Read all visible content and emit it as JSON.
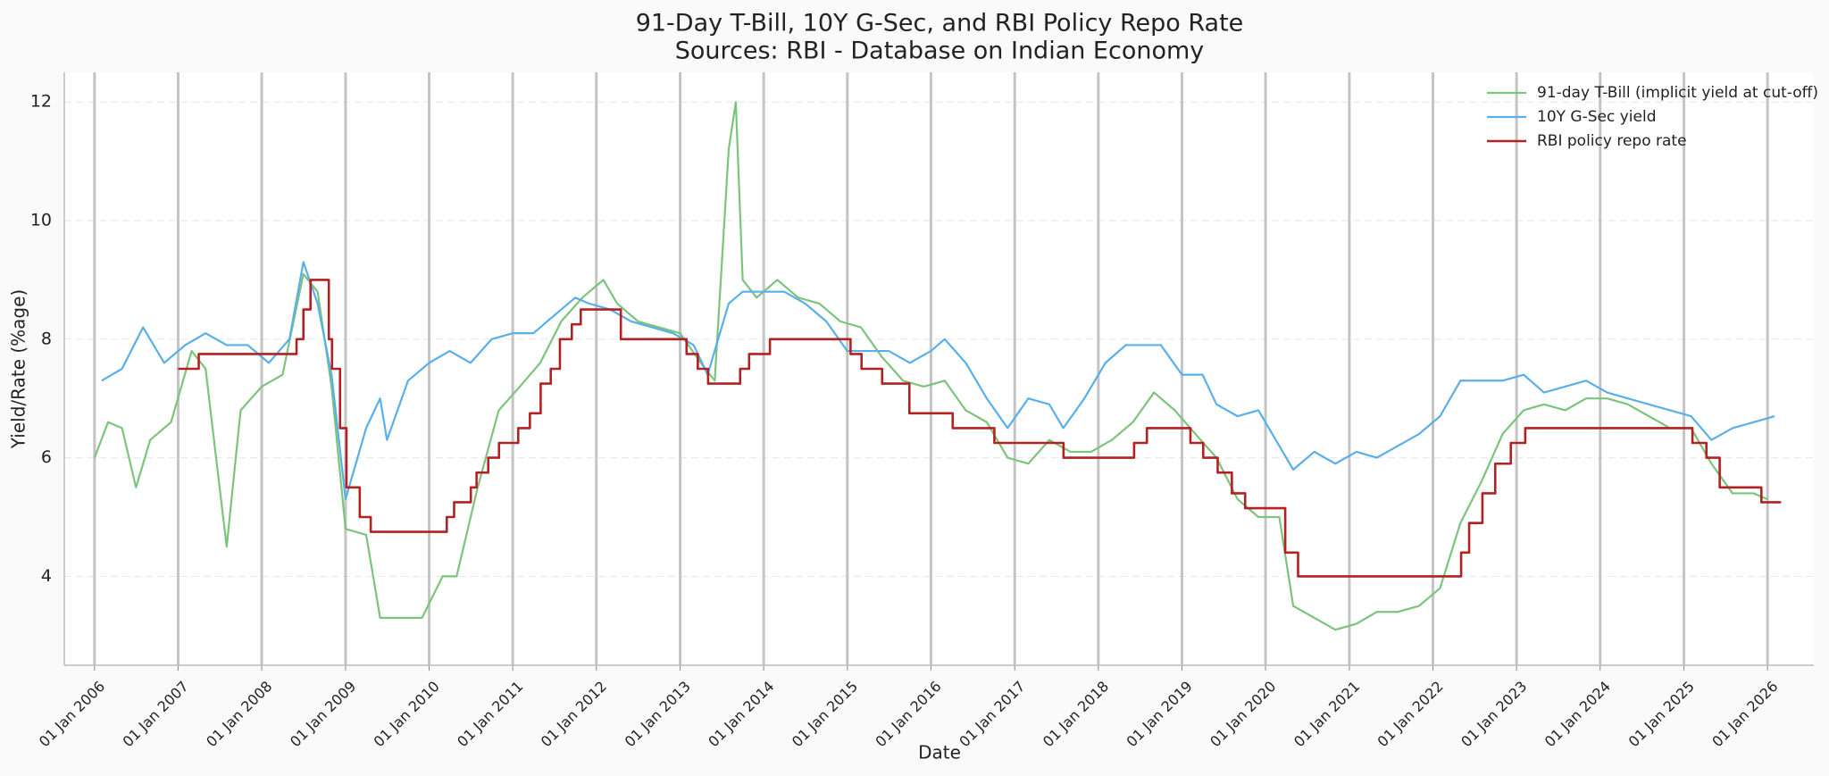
{
  "chart_data": {
    "type": "line",
    "title": "91-Day T-Bill, 10Y G-Sec, and RBI Policy Repo Rate",
    "subtitle": "Sources: RBI - Database on Indian Economy",
    "x_label": "Date",
    "y_label": "Yield/Rate (%age)",
    "xlim": [
      "2005-08-22",
      "2026-07-22"
    ],
    "ylim": [
      2.5,
      12.5
    ],
    "yticks": [
      4,
      6,
      8,
      10,
      12
    ],
    "xticks": [
      {
        "value": "2006-01-01",
        "label": "01 Jan 2006"
      },
      {
        "value": "2007-01-01",
        "label": "01 Jan 2007"
      },
      {
        "value": "2008-01-01",
        "label": "01 Jan 2008"
      },
      {
        "value": "2009-01-01",
        "label": "01 Jan 2009"
      },
      {
        "value": "2010-01-01",
        "label": "01 Jan 2010"
      },
      {
        "value": "2011-01-01",
        "label": "01 Jan 2011"
      },
      {
        "value": "2012-01-01",
        "label": "01 Jan 2012"
      },
      {
        "value": "2013-01-01",
        "label": "01 Jan 2013"
      },
      {
        "value": "2014-01-01",
        "label": "01 Jan 2014"
      },
      {
        "value": "2015-01-01",
        "label": "01 Jan 2015"
      },
      {
        "value": "2016-01-01",
        "label": "01 Jan 2016"
      },
      {
        "value": "2017-01-01",
        "label": "01 Jan 2017"
      },
      {
        "value": "2018-01-01",
        "label": "01 Jan 2018"
      },
      {
        "value": "2019-01-01",
        "label": "01 Jan 2019"
      },
      {
        "value": "2020-01-01",
        "label": "01 Jan 2020"
      },
      {
        "value": "2021-01-01",
        "label": "01 Jan 2021"
      },
      {
        "value": "2022-01-01",
        "label": "01 Jan 2022"
      },
      {
        "value": "2023-01-01",
        "label": "01 Jan 2023"
      },
      {
        "value": "2024-01-01",
        "label": "01 Jan 2024"
      },
      {
        "value": "2025-01-01",
        "label": "01 Jan 2025"
      },
      {
        "value": "2026-01-01",
        "label": "01 Jan 2026"
      }
    ],
    "grid": true,
    "legend": "upper right",
    "series": [
      {
        "name": "91-day T-Bill (implicit yield at cut-off)",
        "color": "#7cc47c",
        "x": [
          "2006-01-01",
          "2006-03-01",
          "2006-05-01",
          "2006-07-01",
          "2006-09-01",
          "2006-12-01",
          "2007-03-01",
          "2007-05-01",
          "2007-07-01",
          "2007-08-01",
          "2007-10-01",
          "2008-01-01",
          "2008-04-01",
          "2008-07-01",
          "2008-09-01",
          "2008-11-01",
          "2009-01-01",
          "2009-04-01",
          "2009-06-01",
          "2009-09-01",
          "2009-12-01",
          "2010-03-01",
          "2010-05-01",
          "2010-08-01",
          "2010-11-01",
          "2011-02-01",
          "2011-05-01",
          "2011-08-01",
          "2011-11-01",
          "2012-02-01",
          "2012-04-01",
          "2012-07-01",
          "2012-10-01",
          "2013-01-01",
          "2013-04-01",
          "2013-06-01",
          "2013-08-01",
          "2013-09-01",
          "2013-10-01",
          "2013-12-01",
          "2014-03-01",
          "2014-06-01",
          "2014-09-01",
          "2014-12-01",
          "2015-03-01",
          "2015-06-01",
          "2015-09-01",
          "2015-12-01",
          "2016-03-01",
          "2016-06-01",
          "2016-09-01",
          "2016-12-01",
          "2017-03-01",
          "2017-06-01",
          "2017-09-01",
          "2017-12-01",
          "2018-03-01",
          "2018-06-01",
          "2018-09-01",
          "2018-12-01",
          "2019-03-01",
          "2019-06-01",
          "2019-09-01",
          "2019-12-01",
          "2020-03-01",
          "2020-05-01",
          "2020-08-01",
          "2020-11-01",
          "2021-02-01",
          "2021-05-01",
          "2021-08-01",
          "2021-11-01",
          "2022-02-01",
          "2022-05-01",
          "2022-08-01",
          "2022-11-01",
          "2023-02-01",
          "2023-05-01",
          "2023-08-01",
          "2023-11-01",
          "2024-02-01",
          "2024-05-01",
          "2024-08-01",
          "2024-11-01",
          "2025-02-01",
          "2025-05-01",
          "2025-08-01",
          "2025-11-01",
          "2026-01-01"
        ],
        "values": [
          6.0,
          6.6,
          6.5,
          5.5,
          6.3,
          6.6,
          7.8,
          7.5,
          5.5,
          4.5,
          6.8,
          7.2,
          7.4,
          9.1,
          8.8,
          7.2,
          4.8,
          4.7,
          3.3,
          3.3,
          3.3,
          4.0,
          4.0,
          5.5,
          6.8,
          7.2,
          7.6,
          8.3,
          8.7,
          9.0,
          8.6,
          8.3,
          8.2,
          8.1,
          7.6,
          7.3,
          11.2,
          12.0,
          9.0,
          8.7,
          9.0,
          8.7,
          8.6,
          8.3,
          8.2,
          7.7,
          7.3,
          7.2,
          7.3,
          6.8,
          6.6,
          6.0,
          5.9,
          6.3,
          6.1,
          6.1,
          6.3,
          6.6,
          7.1,
          6.8,
          6.4,
          6.0,
          5.3,
          5.0,
          5.0,
          3.5,
          3.3,
          3.1,
          3.2,
          3.4,
          3.4,
          3.5,
          3.8,
          4.9,
          5.6,
          6.4,
          6.8,
          6.9,
          6.8,
          7.0,
          7.0,
          6.9,
          6.7,
          6.5,
          6.5,
          5.9,
          5.4,
          5.4,
          5.3
        ]
      },
      {
        "name": "10Y G-Sec yield",
        "color": "#5aafe8",
        "x": [
          "2006-02-01",
          "2006-05-01",
          "2006-08-01",
          "2006-11-01",
          "2007-02-01",
          "2007-05-01",
          "2007-08-01",
          "2007-11-01",
          "2008-02-01",
          "2008-05-01",
          "2008-07-01",
          "2008-09-01",
          "2008-11-01",
          "2009-01-01",
          "2009-04-01",
          "2009-06-01",
          "2009-07-01",
          "2009-10-01",
          "2010-01-01",
          "2010-04-01",
          "2010-07-01",
          "2010-10-01",
          "2011-01-01",
          "2011-04-01",
          "2011-07-01",
          "2011-10-01",
          "2011-12-01",
          "2012-03-01",
          "2012-06-01",
          "2012-09-01",
          "2012-12-01",
          "2013-03-01",
          "2013-05-01",
          "2013-08-01",
          "2013-10-01",
          "2014-01-01",
          "2014-04-01",
          "2014-07-01",
          "2014-10-01",
          "2015-01-01",
          "2015-04-01",
          "2015-07-01",
          "2015-10-01",
          "2016-01-01",
          "2016-03-01",
          "2016-06-01",
          "2016-09-01",
          "2016-12-01",
          "2017-03-01",
          "2017-06-01",
          "2017-08-01",
          "2017-11-01",
          "2018-02-01",
          "2018-05-01",
          "2018-08-01",
          "2018-10-01",
          "2019-01-01",
          "2019-04-01",
          "2019-06-01",
          "2019-09-01",
          "2019-12-01",
          "2020-03-01",
          "2020-05-01",
          "2020-08-01",
          "2020-11-01",
          "2021-02-01",
          "2021-05-01",
          "2021-08-01",
          "2021-11-01",
          "2022-02-01",
          "2022-05-01",
          "2022-08-01",
          "2022-11-01",
          "2023-02-01",
          "2023-05-01",
          "2023-08-01",
          "2023-11-01",
          "2024-02-01",
          "2024-05-01",
          "2024-08-01",
          "2024-11-01",
          "2025-02-01",
          "2025-05-01",
          "2025-08-01",
          "2025-11-01",
          "2026-02-01"
        ],
        "values": [
          7.3,
          7.5,
          8.2,
          7.6,
          7.9,
          8.1,
          7.9,
          7.9,
          7.6,
          8.0,
          9.3,
          8.6,
          7.4,
          5.3,
          6.5,
          7.0,
          6.3,
          7.3,
          7.6,
          7.8,
          7.6,
          8.0,
          8.1,
          8.1,
          8.4,
          8.7,
          8.6,
          8.5,
          8.3,
          8.2,
          8.1,
          7.9,
          7.4,
          8.6,
          8.8,
          8.8,
          8.8,
          8.6,
          8.3,
          7.8,
          7.8,
          7.8,
          7.6,
          7.8,
          8.0,
          7.6,
          7.0,
          6.5,
          7.0,
          6.9,
          6.5,
          7.0,
          7.6,
          7.9,
          7.9,
          7.9,
          7.4,
          7.4,
          6.9,
          6.7,
          6.8,
          6.2,
          5.8,
          6.1,
          5.9,
          6.1,
          6.0,
          6.2,
          6.4,
          6.7,
          7.3,
          7.3,
          7.3,
          7.4,
          7.1,
          7.2,
          7.3,
          7.1,
          7.0,
          6.9,
          6.8,
          6.7,
          6.3,
          6.5,
          6.6,
          6.7
        ]
      },
      {
        "name": "RBI policy repo rate",
        "color": "#b22222",
        "step": "post",
        "x": [
          "2007-01-01",
          "2007-04-01",
          "2008-06-01",
          "2008-07-01",
          "2008-08-01",
          "2008-10-20",
          "2008-11-03",
          "2008-12-08",
          "2009-01-05",
          "2009-03-04",
          "2009-04-21",
          "2010-03-19",
          "2010-04-20",
          "2010-07-02",
          "2010-07-27",
          "2010-09-16",
          "2010-11-02",
          "2011-01-25",
          "2011-03-17",
          "2011-05-03",
          "2011-06-16",
          "2011-07-26",
          "2011-09-16",
          "2011-10-25",
          "2012-04-17",
          "2013-01-29",
          "2013-03-19",
          "2013-05-03",
          "2013-09-20",
          "2013-10-29",
          "2014-01-28",
          "2015-01-15",
          "2015-03-04",
          "2015-06-02",
          "2015-09-29",
          "2016-04-05",
          "2016-10-04",
          "2017-08-02",
          "2018-06-06",
          "2018-08-01",
          "2019-02-07",
          "2019-04-04",
          "2019-06-06",
          "2019-08-07",
          "2019-10-04",
          "2020-03-27",
          "2020-05-22",
          "2022-05-04",
          "2022-06-08",
          "2022-08-05",
          "2022-09-30",
          "2022-12-07",
          "2023-02-08",
          "2025-02-07",
          "2025-04-09",
          "2025-06-06",
          "2025-12-05",
          "2026-03-01"
        ],
        "values": [
          7.5,
          7.75,
          8.0,
          8.5,
          9.0,
          8.0,
          7.5,
          6.5,
          5.5,
          5.0,
          4.75,
          5.0,
          5.25,
          5.5,
          5.75,
          6.0,
          6.25,
          6.5,
          6.75,
          7.25,
          7.5,
          8.0,
          8.25,
          8.5,
          8.0,
          7.75,
          7.5,
          7.25,
          7.5,
          7.75,
          8.0,
          7.75,
          7.5,
          7.25,
          6.75,
          6.5,
          6.25,
          6.0,
          6.25,
          6.5,
          6.25,
          6.0,
          5.75,
          5.4,
          5.15,
          4.4,
          4.0,
          4.4,
          4.9,
          5.4,
          5.9,
          6.25,
          6.5,
          6.25,
          6.0,
          5.5,
          5.25,
          5.25
        ]
      }
    ]
  }
}
